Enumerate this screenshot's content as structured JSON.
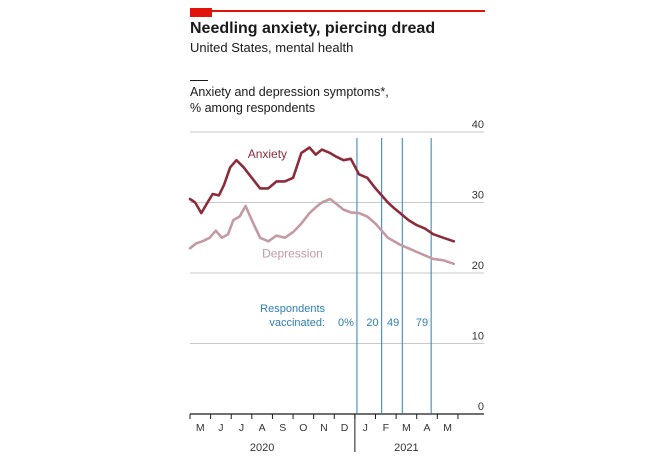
{
  "header": {
    "title": "Needling anxiety, piercing dread",
    "subtitle": "United States, mental health",
    "accent_color": "#e3120b"
  },
  "chart_data": {
    "type": "line",
    "title": "Needling anxiety, piercing dread",
    "subtitle": "United States, mental health",
    "ylabel_lines": [
      "Anxiety and depression symptoms*,",
      "% among respondents"
    ],
    "xlabel": "",
    "ylim": [
      0,
      40
    ],
    "yticks": [
      0,
      10,
      20,
      30,
      40
    ],
    "grid": true,
    "x_unit": "month index (0 = start of May 2020)",
    "xlim": [
      0,
      13.1
    ],
    "x_month_labels": [
      "M",
      "J",
      "J",
      "A",
      "S",
      "O",
      "N",
      "D",
      "J",
      "F",
      "M",
      "A",
      "M"
    ],
    "year_labels": [
      {
        "label": "2020",
        "at_month": 3.5
      },
      {
        "label": "2021",
        "at_month": 10.5
      }
    ],
    "series": [
      {
        "name": "Anxiety",
        "color": "#8b2c3a",
        "x": [
          0.0,
          0.25,
          0.55,
          0.85,
          1.1,
          1.4,
          1.65,
          1.95,
          2.25,
          2.6,
          3.0,
          3.4,
          3.8,
          4.2,
          4.6,
          5.0,
          5.4,
          5.8,
          6.1,
          6.4,
          6.8,
          7.1,
          7.45,
          7.8,
          8.2,
          8.6,
          9.0,
          9.3,
          9.6,
          9.9,
          10.2,
          10.6,
          11.0,
          11.4,
          11.8,
          12.3,
          12.8
        ],
        "values": [
          30.5,
          30.0,
          28.5,
          30.0,
          31.2,
          31.0,
          32.5,
          35.0,
          36.0,
          35.0,
          33.5,
          32.0,
          32.0,
          33.0,
          33.0,
          33.5,
          37.0,
          37.8,
          36.8,
          37.5,
          37.0,
          36.5,
          36.0,
          36.2,
          34.0,
          33.5,
          32.0,
          31.0,
          30.0,
          29.2,
          28.5,
          27.5,
          26.8,
          26.3,
          25.5,
          25.0,
          24.5
        ]
      },
      {
        "name": "Depression",
        "color": "#c39aa2",
        "x": [
          0.0,
          0.3,
          0.6,
          0.95,
          1.25,
          1.55,
          1.85,
          2.1,
          2.4,
          2.7,
          3.0,
          3.4,
          3.8,
          4.2,
          4.6,
          5.0,
          5.4,
          5.8,
          6.1,
          6.4,
          6.8,
          7.1,
          7.45,
          7.8,
          8.2,
          8.6,
          9.0,
          9.3,
          9.6,
          9.9,
          10.2,
          10.6,
          11.0,
          11.4,
          11.8,
          12.3,
          12.8
        ],
        "values": [
          23.5,
          24.2,
          24.5,
          25.0,
          26.0,
          25.0,
          25.5,
          27.5,
          28.0,
          29.5,
          27.5,
          25.0,
          24.5,
          25.3,
          25.0,
          25.8,
          27.0,
          28.5,
          29.3,
          30.0,
          30.5,
          29.8,
          29.0,
          28.6,
          28.5,
          28.0,
          27.0,
          26.0,
          25.0,
          24.5,
          24.0,
          23.5,
          23.0,
          22.5,
          22.0,
          21.8,
          21.3
        ]
      }
    ],
    "annotation": {
      "label_lines": [
        "Respondents",
        "vaccinated:"
      ],
      "color": "#2d7fb3",
      "markers": [
        {
          "x": 8.1,
          "label": "0%"
        },
        {
          "x": 9.3,
          "label": "20"
        },
        {
          "x": 10.3,
          "label": "49"
        },
        {
          "x": 11.7,
          "label": "79"
        }
      ]
    }
  }
}
